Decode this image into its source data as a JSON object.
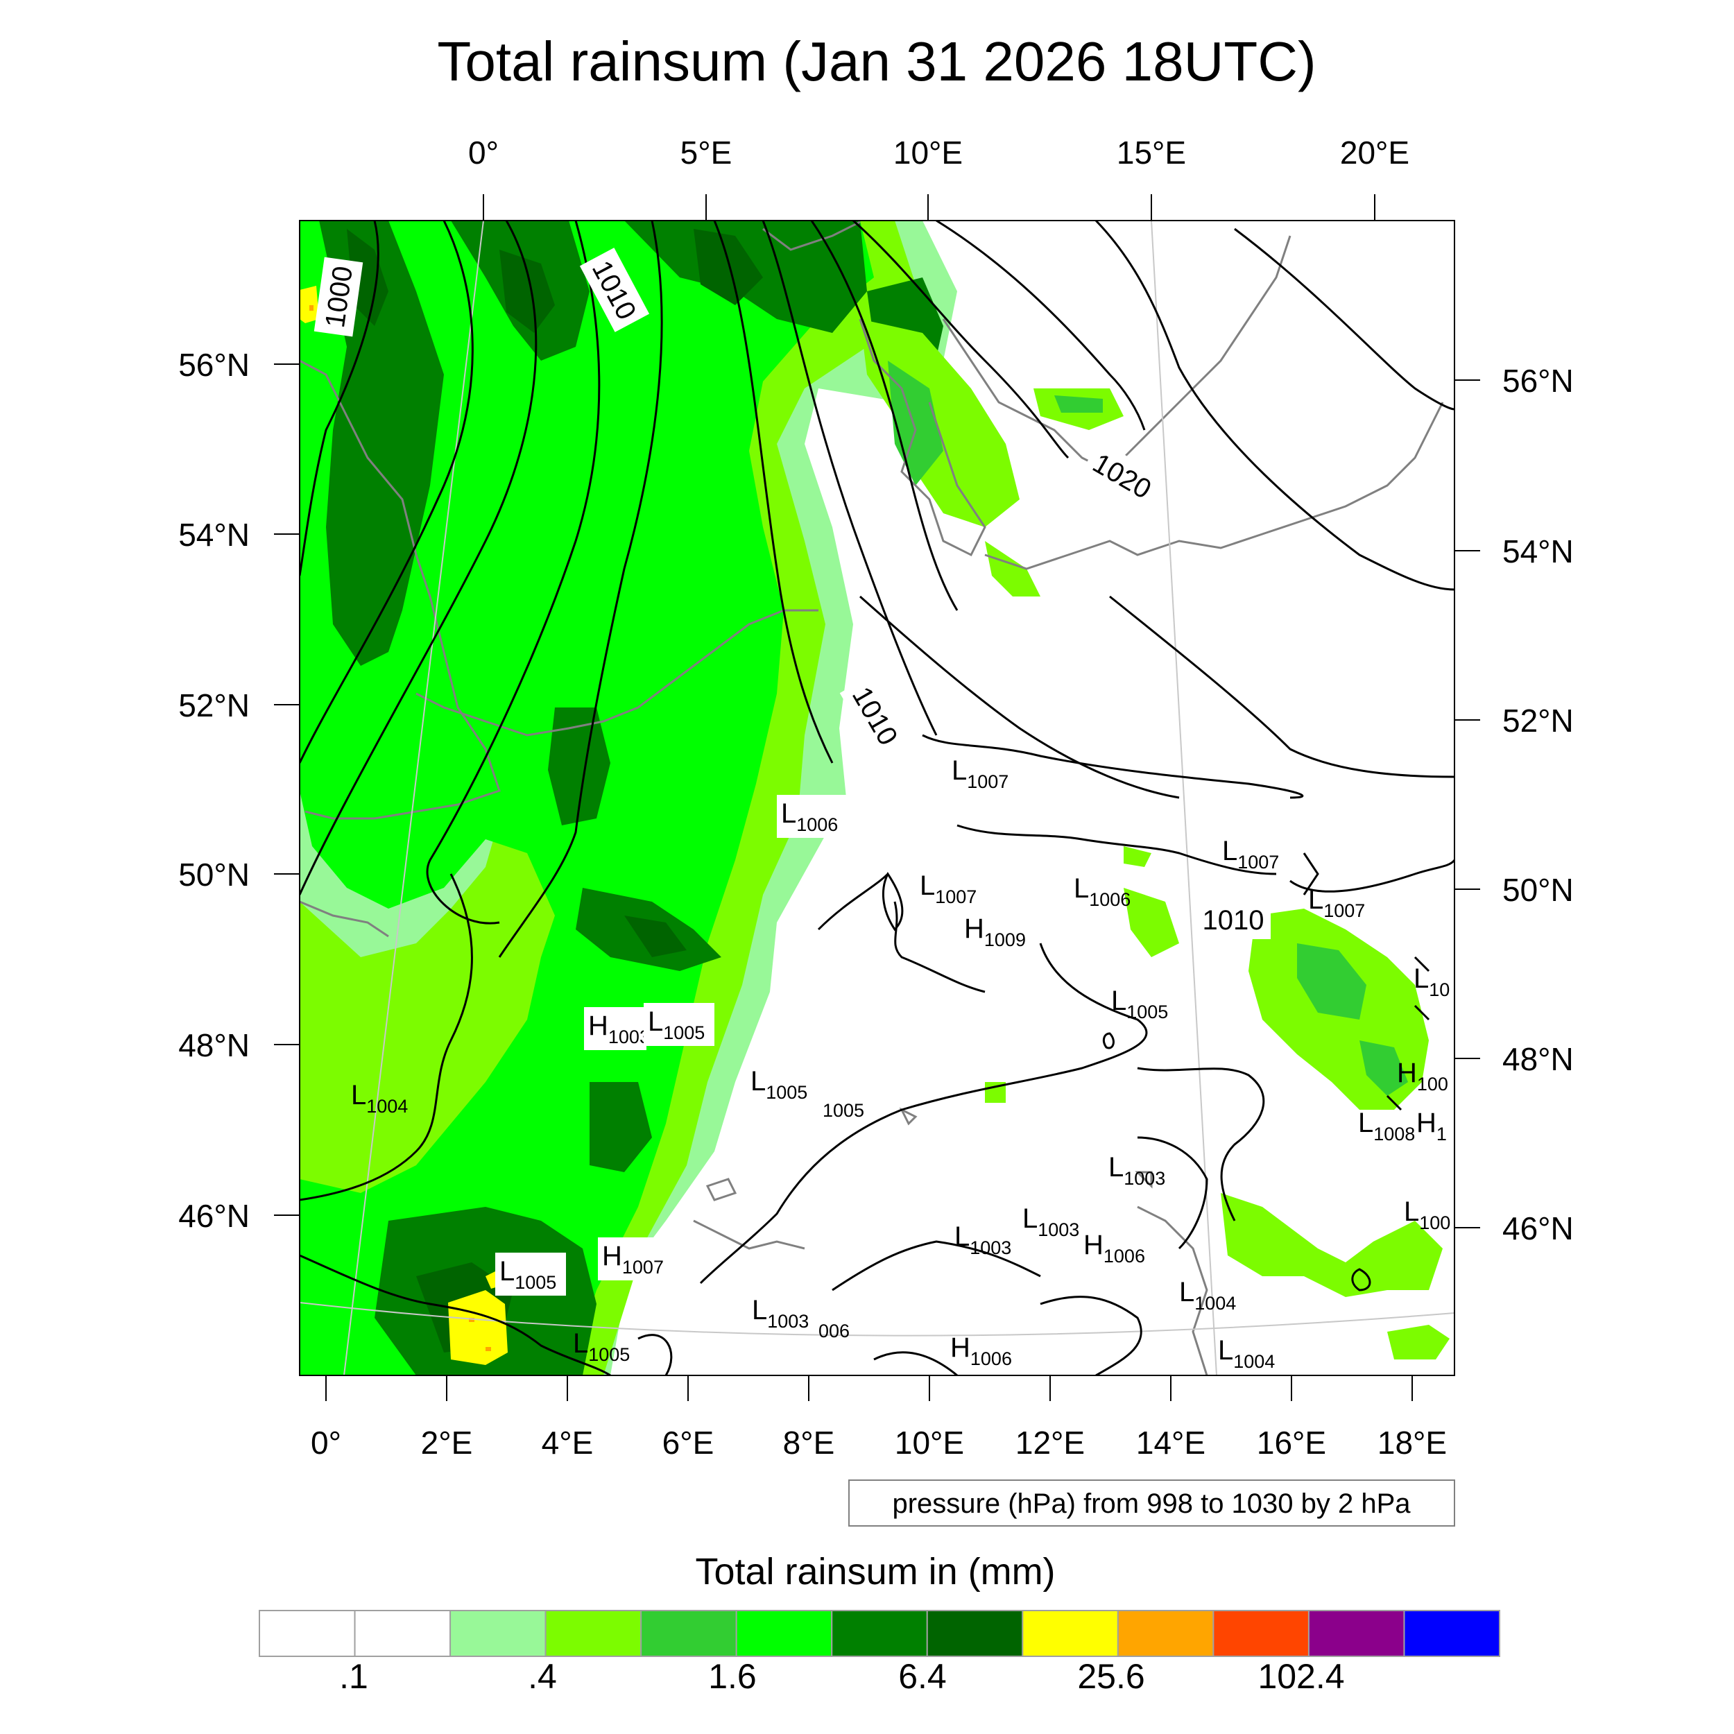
{
  "title": "Total rainsum (Jan 31 2026 18UTC)",
  "top_lon_labels": [
    "0°",
    "5°E",
    "10°E",
    "15°E",
    "20°E"
  ],
  "left_lat_labels": [
    "56°N",
    "54°N",
    "52°N",
    "50°N",
    "48°N",
    "46°N"
  ],
  "right_lat_labels": [
    "56°N",
    "54°N",
    "52°N",
    "50°N",
    "48°N",
    "46°N"
  ],
  "bottom_lon_labels": [
    "0°",
    "2°E",
    "4°E",
    "6°E",
    "8°E",
    "10°E",
    "12°E",
    "14°E",
    "16°E",
    "18°E"
  ],
  "contour_note": "pressure (hPa) from 998 to 1030 by 2 hPa",
  "colorbar": {
    "title": "Total rainsum in (mm)",
    "colors": [
      "#ffffff",
      "#ffffff",
      "#98f898",
      "#7cfc00",
      "#32cd32",
      "#00ff00",
      "#008000",
      "#006400",
      "#ffff00",
      "#ffa500",
      "#ff4500",
      "#8b008b",
      "#0000ff"
    ],
    "tick_labels": [
      ".1",
      ".4",
      "1.6",
      "6.4",
      "25.6",
      "102.4"
    ]
  },
  "isobar_labels": [
    "1000",
    "1010",
    "1010",
    "1010",
    "1020"
  ],
  "pressure_centers": [
    {
      "t": "L",
      "v": "1007"
    },
    {
      "t": "L",
      "v": "1006"
    },
    {
      "t": "L",
      "v": "1007"
    },
    {
      "t": "H",
      "v": "1009"
    },
    {
      "t": "L",
      "v": "1006"
    },
    {
      "t": "L",
      "v": "1007"
    },
    {
      "t": "L",
      "v": "1007"
    },
    {
      "t": "L",
      "v": "1005"
    },
    {
      "t": "H",
      "v": "1003"
    },
    {
      "t": "L",
      "v": "1005"
    },
    {
      "t": "L",
      "v": "1004"
    },
    {
      "t": "L",
      "v": "1005"
    },
    {
      "t": "L",
      "v": "1003"
    },
    {
      "t": "L",
      "v": "1003"
    },
    {
      "t": "L",
      "v": "1003"
    },
    {
      "t": "H",
      "v": "1006"
    },
    {
      "t": "H",
      "v": "1007"
    },
    {
      "t": "L",
      "v": "1005"
    },
    {
      "t": "L",
      "v": "1003"
    },
    {
      "t": "L",
      "v": "1005"
    },
    {
      "t": "H",
      "v": "1006"
    },
    {
      "t": "L",
      "v": "1004"
    },
    {
      "t": "L",
      "v": "1004"
    },
    {
      "t": "L",
      "v": "10"
    },
    {
      "t": "H",
      "v": "100"
    },
    {
      "t": "L",
      "v": "1008"
    },
    {
      "t": "H",
      "v": "1"
    },
    {
      "t": "L",
      "v": "100"
    }
  ],
  "pressure_sub_labels": [
    "1005",
    "006"
  ]
}
